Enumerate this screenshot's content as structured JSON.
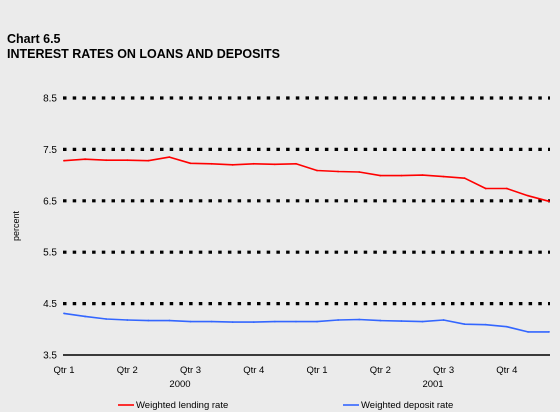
{
  "chart_data": {
    "type": "line",
    "title": "Chart 6.5",
    "subtitle": "INTEREST RATES ON LOANS AND DEPOSITS",
    "ylabel": "percent",
    "xlabel": "",
    "ylim": [
      3.5,
      8.5
    ],
    "yticks": [
      "8.5",
      "7.5",
      "6.5",
      "5.5",
      "4.5",
      "3.5"
    ],
    "grid": "dotted horizontal",
    "legend_position": "bottom",
    "x_quarter_labels": [
      "Qtr 1",
      "Qtr 2",
      "Qtr 3",
      "Qtr 4",
      "Qtr 1",
      "Qtr 2",
      "Qtr 3",
      "Qtr 4"
    ],
    "x_year_labels": [
      "2000",
      "2001"
    ],
    "points_per_year": 12,
    "series": [
      {
        "name": "Weighted lending rate",
        "color": "#ff0000",
        "values": [
          7.28,
          7.31,
          7.29,
          7.29,
          7.28,
          7.35,
          7.23,
          7.22,
          7.2,
          7.22,
          7.21,
          7.22,
          7.09,
          7.07,
          7.06,
          6.99,
          6.99,
          7.0,
          6.97,
          6.94,
          6.74,
          6.74,
          6.6,
          6.49
        ]
      },
      {
        "name": "Weighted deposit rate",
        "color": "#3366ff",
        "values": [
          4.31,
          4.25,
          4.2,
          4.18,
          4.17,
          4.17,
          4.15,
          4.15,
          4.14,
          4.14,
          4.15,
          4.15,
          4.15,
          4.18,
          4.19,
          4.17,
          4.16,
          4.15,
          4.18,
          4.1,
          4.09,
          4.05,
          3.95,
          3.95
        ]
      }
    ]
  }
}
